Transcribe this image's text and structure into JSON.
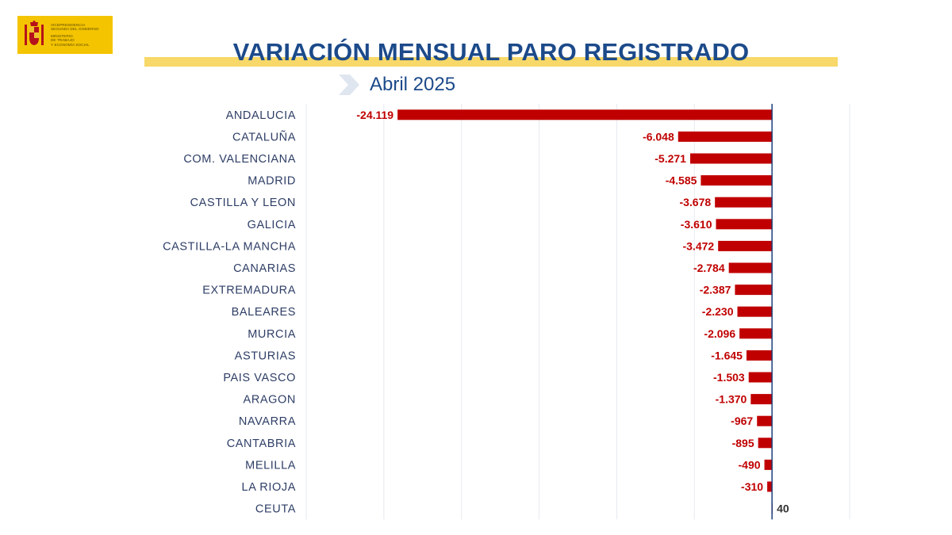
{
  "logo": {
    "lines_top": [
      "Vicepresidencia",
      "Segunda del Gobierno"
    ],
    "lines_bottom": [
      "Ministerio",
      "de Trabajo",
      "y Economía Social"
    ],
    "crest_icon": "spain-coat-of-arms-icon",
    "background_color": "#f4c400"
  },
  "colors": {
    "title": "#1c4a8a",
    "title_band": "#f7d868",
    "bar": "#c00000",
    "label": "#c00000",
    "label_positive": "#333333",
    "axis": "#1c3f7a",
    "category": "#2e3e66"
  },
  "chart_data": {
    "type": "bar",
    "orientation": "horizontal",
    "title": "VARIACIÓN MENSUAL PARO REGISTRADO",
    "subtitle": "Abril 2025",
    "categories": [
      "ANDALUCIA",
      "CATALUÑA",
      "COM. VALENCIANA",
      "MADRID",
      "CASTILLA Y LEON",
      "GALICIA",
      "CASTILLA-LA MANCHA",
      "CANARIAS",
      "EXTREMADURA",
      "BALEARES",
      "MURCIA",
      "ASTURIAS",
      "PAIS VASCO",
      "ARAGON",
      "NAVARRA",
      "CANTABRIA",
      "MELILLA",
      "LA RIOJA",
      "CEUTA"
    ],
    "values": [
      -24119,
      -6048,
      -5271,
      -4585,
      -3678,
      -3610,
      -3472,
      -2784,
      -2387,
      -2230,
      -2096,
      -1645,
      -1503,
      -1370,
      -967,
      -895,
      -490,
      -310,
      40
    ],
    "value_labels": [
      "-24.119",
      "-6.048",
      "-5.271",
      "-4.585",
      "-3.678",
      "-3.610",
      "-3.472",
      "-2.784",
      "-2.387",
      "-2.230",
      "-2.096",
      "-1.645",
      "-1.503",
      "-1.370",
      "-967",
      "-895",
      "-490",
      "-310",
      "40"
    ],
    "xlim": [
      -30000,
      5000
    ],
    "grid": true,
    "legend": "none"
  }
}
